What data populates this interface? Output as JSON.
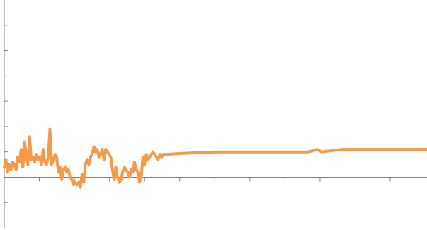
{
  "chart_data": {
    "type": "line",
    "title": "",
    "xlabel": "",
    "ylabel": "",
    "xlim": [
      0,
      100
    ],
    "ylim": [
      -2,
      7
    ],
    "x_tick_values": [
      8.3,
      16.6,
      24.9,
      33.2,
      41.5,
      49.8,
      58.1,
      66.4,
      74.7,
      83.0,
      91.3
    ],
    "y_tick_values": [
      -1,
      0,
      1,
      2,
      3,
      4,
      5,
      6
    ],
    "grid": false,
    "legend": "none",
    "line_color": "#F59A4A",
    "axis_color": "#808080",
    "series": [
      {
        "values_x": [
          0.0,
          0.4,
          0.8,
          1.2,
          1.6,
          2.0,
          2.4,
          2.8,
          3.2,
          3.6,
          4.0,
          4.4,
          4.8,
          5.2,
          5.6,
          6.0,
          6.4,
          6.8,
          7.2,
          7.6,
          8.0,
          8.4,
          8.8,
          9.2,
          9.6,
          10.0,
          10.4,
          10.8,
          11.2,
          11.6,
          12.0,
          12.4,
          12.8,
          13.2,
          13.6,
          14.0,
          14.4,
          14.8,
          15.2,
          15.6,
          16.0,
          16.4,
          16.8,
          17.2,
          17.6,
          18.0,
          18.4,
          18.8,
          19.2,
          19.6,
          20.0,
          20.4,
          20.8,
          21.2,
          21.6,
          22.0,
          22.4,
          22.8,
          23.2,
          23.6,
          24.0,
          24.4,
          24.8,
          25.2,
          25.6,
          26.0,
          26.4,
          26.8,
          27.2,
          27.6,
          28.0,
          28.4,
          28.8,
          29.2,
          29.6,
          30.0,
          30.4,
          30.8,
          31.2,
          31.6,
          32.0,
          32.4,
          32.8,
          33.2,
          33.6,
          34.0,
          34.4,
          34.8,
          35.2,
          35.6,
          36.0,
          36.4,
          36.8,
          37.2,
          37.6,
          38.0
        ],
        "values_y": [
          0.4,
          0.7,
          0.2,
          0.5,
          0.3,
          0.6,
          0.5,
          0.3,
          0.8,
          0.6,
          1.1,
          0.4,
          1.4,
          0.9,
          0.5,
          1.6,
          0.7,
          0.8,
          0.6,
          0.9,
          0.7,
          0.8,
          0.5,
          1.1,
          0.6,
          0.5,
          0.8,
          1.9,
          0.5,
          0.7,
          0.9,
          0.8,
          0.2,
          0.4,
          -0.1,
          0.3,
          0.4,
          0.2,
          0.3,
          0.0,
          -0.1,
          -0.3,
          -0.2,
          -0.3,
          -0.2,
          -0.4,
          0.1,
          -0.2,
          0.5,
          0.7,
          0.5,
          0.8,
          0.9,
          1.2,
          1.0,
          1.1,
          0.8,
          0.9,
          1.1,
          0.7,
          1.1,
          1.0,
          0.9,
          0.8,
          0.3,
          -0.1,
          0.4,
          0.0,
          -0.2,
          -0.1,
          0.2,
          0.4,
          0.3,
          0.2,
          0.0,
          0.3,
          0.2,
          0.6,
          0.3,
          0.2,
          -0.2,
          0.0,
          0.8,
          0.5,
          0.9,
          0.7,
          0.8,
          0.9,
          1.0,
          0.9,
          0.8,
          0.7,
          0.9,
          0.8,
          0.9,
          0.9
        ]
      },
      {
        "values_x": [
          38.0,
          43.0,
          50.0,
          58.0,
          62.0,
          64.0,
          70.0,
          72.0,
          74.0,
          75.0,
          80.0,
          90.0,
          100.0
        ],
        "values_y": [
          0.9,
          0.95,
          1.0,
          1.0,
          1.0,
          1.0,
          1.0,
          1.0,
          1.1,
          1.0,
          1.1,
          1.1,
          1.1
        ]
      }
    ]
  }
}
